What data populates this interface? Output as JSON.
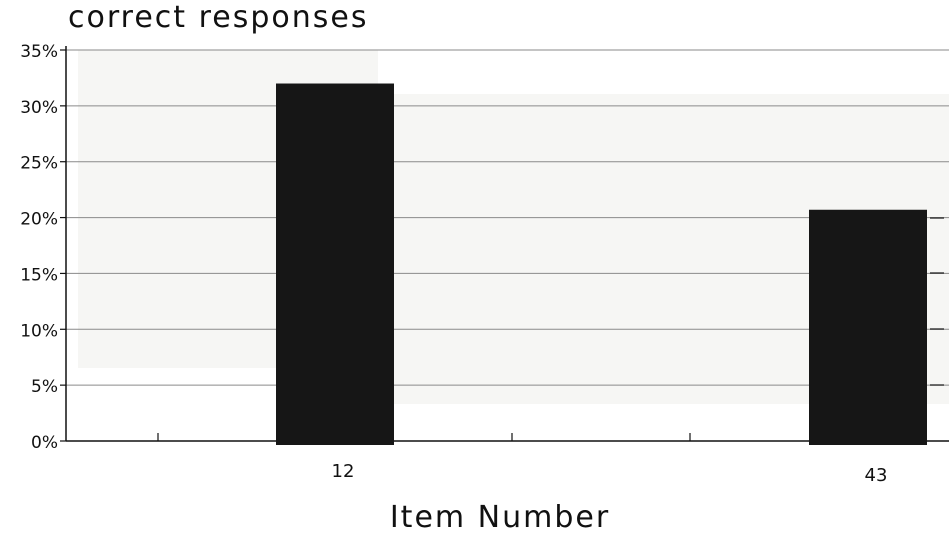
{
  "chart_data": {
    "type": "bar",
    "ylabel": "correct responses",
    "xlabel": "Item Number",
    "categories": [
      "12",
      "43"
    ],
    "values": [
      32,
      20.7
    ],
    "ylim": [
      0,
      35
    ],
    "yticks": [
      {
        "value": 0,
        "label": "0%"
      },
      {
        "value": 5,
        "label": "5%"
      },
      {
        "value": 10,
        "label": "10%"
      },
      {
        "value": 15,
        "label": "15%"
      },
      {
        "value": 20,
        "label": "20%"
      },
      {
        "value": 25,
        "label": "25%"
      },
      {
        "value": 30,
        "label": "30%"
      },
      {
        "value": 35,
        "label": "35%"
      }
    ],
    "grid": true,
    "bar_color": "#161616",
    "plot_background": "#f6f6f4",
    "legend": "none"
  }
}
